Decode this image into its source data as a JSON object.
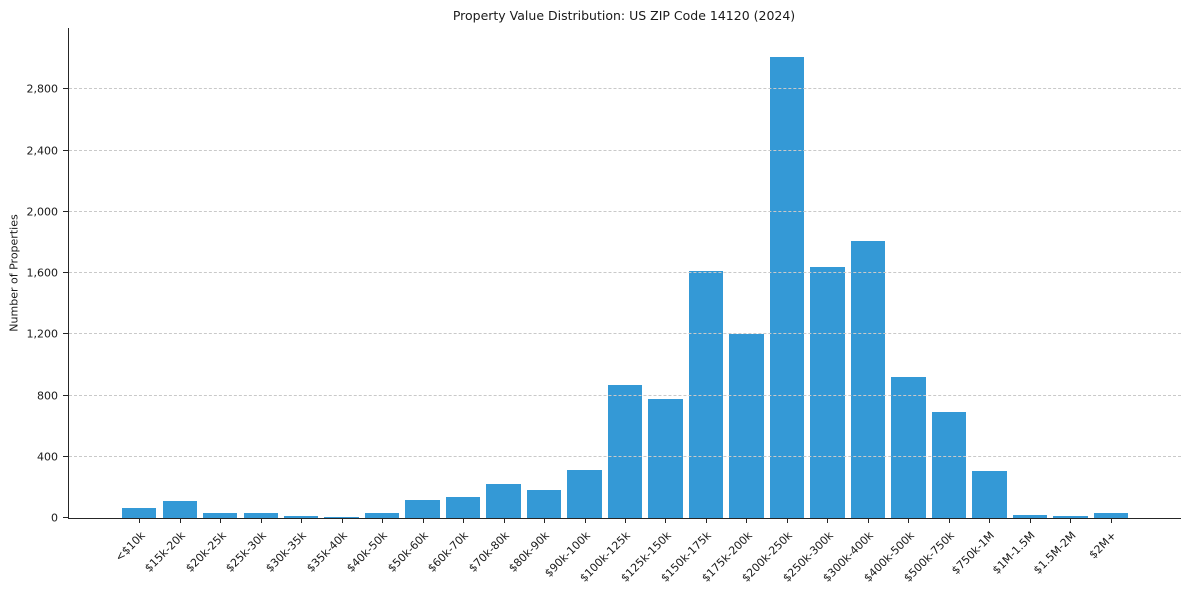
{
  "chart_data": {
    "type": "bar",
    "title": "Property Value Distribution: US ZIP Code 14120 (2024)",
    "xlabel": "",
    "ylabel": "Number of Properties",
    "categories": [
      "<$10k",
      "$15k-20k",
      "$20k-25k",
      "$25k-30k",
      "$30k-35k",
      "$35k-40k",
      "$40k-50k",
      "$50k-60k",
      "$60k-70k",
      "$70k-80k",
      "$80k-90k",
      "$90k-100k",
      "$100k-125k",
      "$125k-150k",
      "$150k-175k",
      "$175k-200k",
      "$200k-250k",
      "$250k-300k",
      "$300k-400k",
      "$400k-500k",
      "$500k-750k",
      "$750k-1M",
      "$1M-1.5M",
      "$1.5M-2M",
      "$2M+"
    ],
    "values": [
      65,
      110,
      35,
      35,
      12,
      6,
      35,
      115,
      135,
      220,
      180,
      315,
      870,
      775,
      1610,
      1200,
      3010,
      1640,
      1810,
      920,
      690,
      305,
      22,
      14,
      35
    ],
    "ylim": [
      0,
      3200
    ],
    "yticks": [
      0,
      400,
      800,
      1200,
      1600,
      2000,
      2400,
      2800
    ],
    "ytick_labels": [
      "0",
      "400",
      "800",
      "1,200",
      "1,600",
      "2,000",
      "2,400",
      "2,800"
    ],
    "grid": "horizontal dashed",
    "legend": "none",
    "bar_color": "#3499d6",
    "axis_color": "#262626",
    "grid_color": "#c9c9c9"
  }
}
